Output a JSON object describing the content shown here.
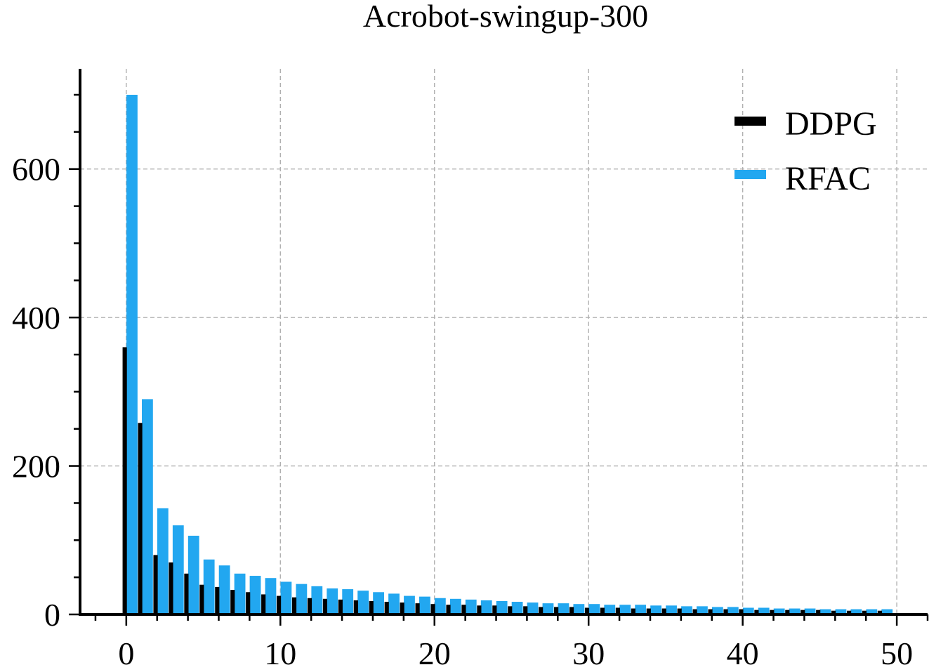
{
  "chart_data": {
    "type": "bar",
    "title": "Acrobot-swingup-300",
    "xlabel": "",
    "ylabel": "",
    "xlim": [
      -3,
      52
    ],
    "ylim": [
      0,
      735
    ],
    "xticks": [
      0,
      10,
      20,
      30,
      40,
      50
    ],
    "yticks": [
      0,
      200,
      400,
      600
    ],
    "grid": true,
    "legend_position": "top-right",
    "x": [
      0,
      1,
      2,
      3,
      4,
      5,
      6,
      7,
      8,
      9,
      10,
      11,
      12,
      13,
      14,
      15,
      16,
      17,
      18,
      19,
      20,
      21,
      22,
      23,
      24,
      25,
      26,
      27,
      28,
      29,
      30,
      31,
      32,
      33,
      34,
      35,
      36,
      37,
      38,
      39,
      40,
      41,
      42,
      43,
      44,
      45,
      46,
      47,
      48,
      49
    ],
    "series": [
      {
        "name": "DDPG",
        "color": "#000000",
        "values": [
          360,
          258,
          80,
          70,
          55,
          40,
          37,
          33,
          30,
          27,
          25,
          23,
          22,
          21,
          20,
          19,
          18,
          17,
          16,
          15,
          14,
          13,
          13,
          12,
          12,
          11,
          11,
          10,
          10,
          10,
          9,
          9,
          9,
          8,
          8,
          8,
          8,
          7,
          7,
          7,
          7,
          6,
          6,
          6,
          6,
          6,
          5,
          5,
          5,
          5
        ]
      },
      {
        "name": "RFAC",
        "color": "#22a7f0",
        "values": [
          700,
          290,
          143,
          120,
          106,
          74,
          66,
          55,
          52,
          49,
          44,
          41,
          38,
          35,
          34,
          32,
          30,
          28,
          25,
          24,
          22,
          21,
          20,
          19,
          18,
          17,
          16,
          15,
          15,
          14,
          14,
          13,
          13,
          13,
          12,
          12,
          11,
          11,
          10,
          10,
          9,
          9,
          8,
          8,
          8,
          7,
          7,
          7,
          7,
          7
        ]
      }
    ]
  }
}
